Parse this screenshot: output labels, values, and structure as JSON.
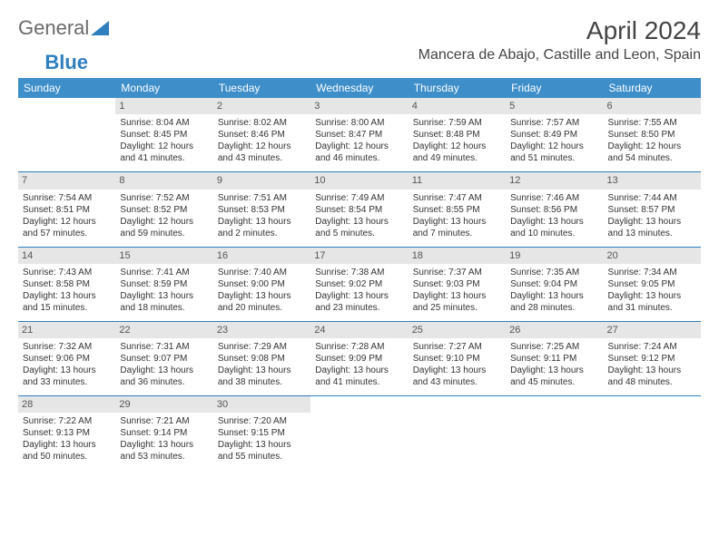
{
  "logo": {
    "text1": "General",
    "text2": "Blue"
  },
  "title": "April 2024",
  "location": "Mancera de Abajo, Castille and Leon, Spain",
  "weekday_header_bg": "#3d8ec9",
  "weekday_header_fg": "#ffffff",
  "daynum_bg": "#e6e6e6",
  "border_color": "#2f7fbf",
  "text_color": "#333333",
  "font_size_cell": 10,
  "weekdays": [
    "Sunday",
    "Monday",
    "Tuesday",
    "Wednesday",
    "Thursday",
    "Friday",
    "Saturday"
  ],
  "weeks": [
    [
      null,
      {
        "n": "1",
        "sr": "Sunrise: 8:04 AM",
        "ss": "Sunset: 8:45 PM",
        "d1": "Daylight: 12 hours",
        "d2": "and 41 minutes."
      },
      {
        "n": "2",
        "sr": "Sunrise: 8:02 AM",
        "ss": "Sunset: 8:46 PM",
        "d1": "Daylight: 12 hours",
        "d2": "and 43 minutes."
      },
      {
        "n": "3",
        "sr": "Sunrise: 8:00 AM",
        "ss": "Sunset: 8:47 PM",
        "d1": "Daylight: 12 hours",
        "d2": "and 46 minutes."
      },
      {
        "n": "4",
        "sr": "Sunrise: 7:59 AM",
        "ss": "Sunset: 8:48 PM",
        "d1": "Daylight: 12 hours",
        "d2": "and 49 minutes."
      },
      {
        "n": "5",
        "sr": "Sunrise: 7:57 AM",
        "ss": "Sunset: 8:49 PM",
        "d1": "Daylight: 12 hours",
        "d2": "and 51 minutes."
      },
      {
        "n": "6",
        "sr": "Sunrise: 7:55 AM",
        "ss": "Sunset: 8:50 PM",
        "d1": "Daylight: 12 hours",
        "d2": "and 54 minutes."
      }
    ],
    [
      {
        "n": "7",
        "sr": "Sunrise: 7:54 AM",
        "ss": "Sunset: 8:51 PM",
        "d1": "Daylight: 12 hours",
        "d2": "and 57 minutes."
      },
      {
        "n": "8",
        "sr": "Sunrise: 7:52 AM",
        "ss": "Sunset: 8:52 PM",
        "d1": "Daylight: 12 hours",
        "d2": "and 59 minutes."
      },
      {
        "n": "9",
        "sr": "Sunrise: 7:51 AM",
        "ss": "Sunset: 8:53 PM",
        "d1": "Daylight: 13 hours",
        "d2": "and 2 minutes."
      },
      {
        "n": "10",
        "sr": "Sunrise: 7:49 AM",
        "ss": "Sunset: 8:54 PM",
        "d1": "Daylight: 13 hours",
        "d2": "and 5 minutes."
      },
      {
        "n": "11",
        "sr": "Sunrise: 7:47 AM",
        "ss": "Sunset: 8:55 PM",
        "d1": "Daylight: 13 hours",
        "d2": "and 7 minutes."
      },
      {
        "n": "12",
        "sr": "Sunrise: 7:46 AM",
        "ss": "Sunset: 8:56 PM",
        "d1": "Daylight: 13 hours",
        "d2": "and 10 minutes."
      },
      {
        "n": "13",
        "sr": "Sunrise: 7:44 AM",
        "ss": "Sunset: 8:57 PM",
        "d1": "Daylight: 13 hours",
        "d2": "and 13 minutes."
      }
    ],
    [
      {
        "n": "14",
        "sr": "Sunrise: 7:43 AM",
        "ss": "Sunset: 8:58 PM",
        "d1": "Daylight: 13 hours",
        "d2": "and 15 minutes."
      },
      {
        "n": "15",
        "sr": "Sunrise: 7:41 AM",
        "ss": "Sunset: 8:59 PM",
        "d1": "Daylight: 13 hours",
        "d2": "and 18 minutes."
      },
      {
        "n": "16",
        "sr": "Sunrise: 7:40 AM",
        "ss": "Sunset: 9:00 PM",
        "d1": "Daylight: 13 hours",
        "d2": "and 20 minutes."
      },
      {
        "n": "17",
        "sr": "Sunrise: 7:38 AM",
        "ss": "Sunset: 9:02 PM",
        "d1": "Daylight: 13 hours",
        "d2": "and 23 minutes."
      },
      {
        "n": "18",
        "sr": "Sunrise: 7:37 AM",
        "ss": "Sunset: 9:03 PM",
        "d1": "Daylight: 13 hours",
        "d2": "and 25 minutes."
      },
      {
        "n": "19",
        "sr": "Sunrise: 7:35 AM",
        "ss": "Sunset: 9:04 PM",
        "d1": "Daylight: 13 hours",
        "d2": "and 28 minutes."
      },
      {
        "n": "20",
        "sr": "Sunrise: 7:34 AM",
        "ss": "Sunset: 9:05 PM",
        "d1": "Daylight: 13 hours",
        "d2": "and 31 minutes."
      }
    ],
    [
      {
        "n": "21",
        "sr": "Sunrise: 7:32 AM",
        "ss": "Sunset: 9:06 PM",
        "d1": "Daylight: 13 hours",
        "d2": "and 33 minutes."
      },
      {
        "n": "22",
        "sr": "Sunrise: 7:31 AM",
        "ss": "Sunset: 9:07 PM",
        "d1": "Daylight: 13 hours",
        "d2": "and 36 minutes."
      },
      {
        "n": "23",
        "sr": "Sunrise: 7:29 AM",
        "ss": "Sunset: 9:08 PM",
        "d1": "Daylight: 13 hours",
        "d2": "and 38 minutes."
      },
      {
        "n": "24",
        "sr": "Sunrise: 7:28 AM",
        "ss": "Sunset: 9:09 PM",
        "d1": "Daylight: 13 hours",
        "d2": "and 41 minutes."
      },
      {
        "n": "25",
        "sr": "Sunrise: 7:27 AM",
        "ss": "Sunset: 9:10 PM",
        "d1": "Daylight: 13 hours",
        "d2": "and 43 minutes."
      },
      {
        "n": "26",
        "sr": "Sunrise: 7:25 AM",
        "ss": "Sunset: 9:11 PM",
        "d1": "Daylight: 13 hours",
        "d2": "and 45 minutes."
      },
      {
        "n": "27",
        "sr": "Sunrise: 7:24 AM",
        "ss": "Sunset: 9:12 PM",
        "d1": "Daylight: 13 hours",
        "d2": "and 48 minutes."
      }
    ],
    [
      {
        "n": "28",
        "sr": "Sunrise: 7:22 AM",
        "ss": "Sunset: 9:13 PM",
        "d1": "Daylight: 13 hours",
        "d2": "and 50 minutes."
      },
      {
        "n": "29",
        "sr": "Sunrise: 7:21 AM",
        "ss": "Sunset: 9:14 PM",
        "d1": "Daylight: 13 hours",
        "d2": "and 53 minutes."
      },
      {
        "n": "30",
        "sr": "Sunrise: 7:20 AM",
        "ss": "Sunset: 9:15 PM",
        "d1": "Daylight: 13 hours",
        "d2": "and 55 minutes."
      },
      null,
      null,
      null,
      null
    ]
  ]
}
